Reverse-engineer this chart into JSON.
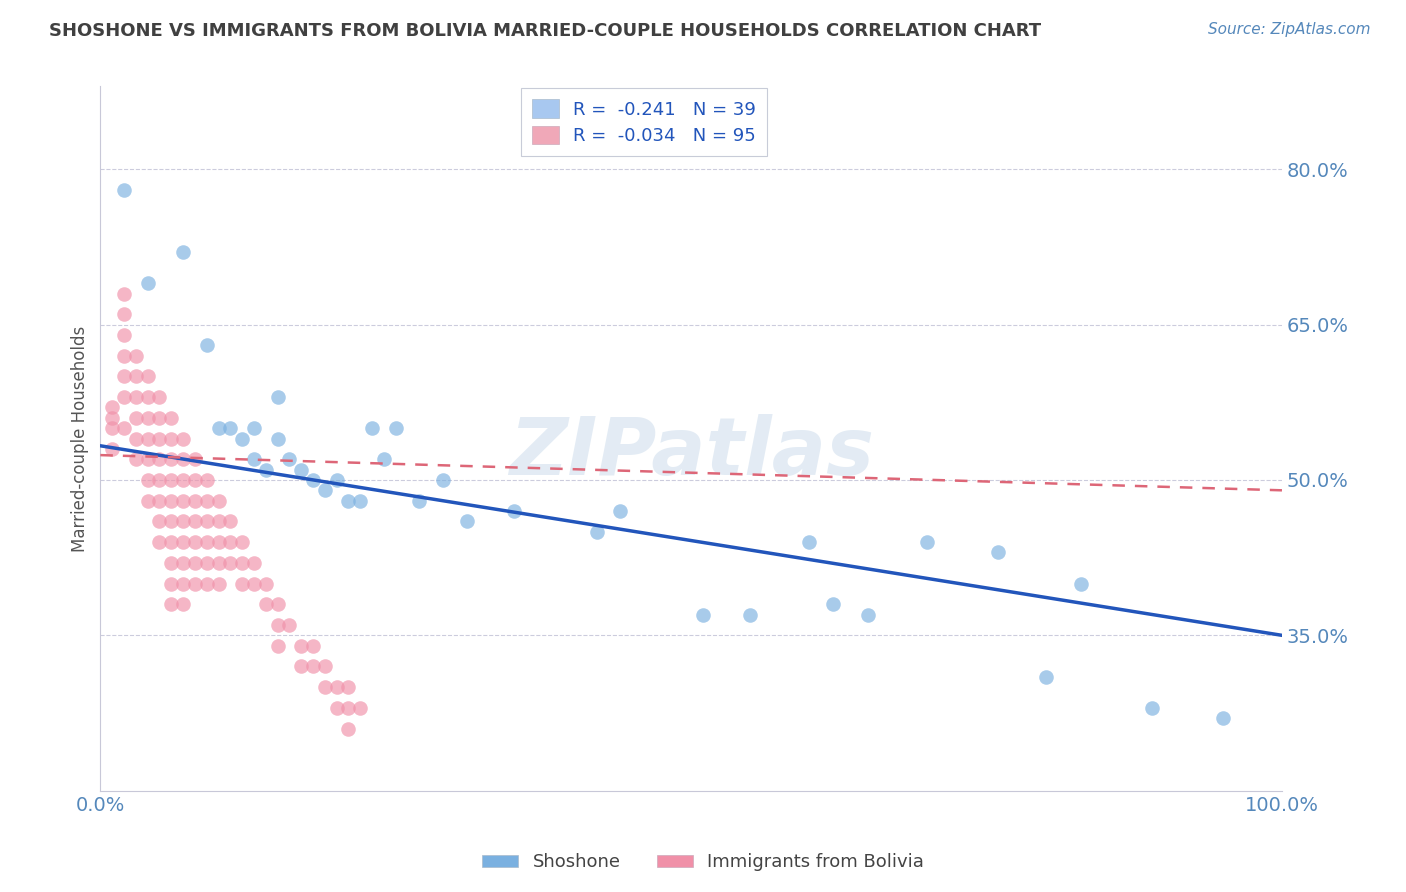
{
  "title": "SHOSHONE VS IMMIGRANTS FROM BOLIVIA MARRIED-COUPLE HOUSEHOLDS CORRELATION CHART",
  "source_text": "Source: ZipAtlas.com",
  "ylabel": "Married-couple Households",
  "watermark": "ZIPatlas",
  "xlim": [
    0.0,
    1.0
  ],
  "ylim": [
    0.2,
    0.88
  ],
  "yticks": [
    0.35,
    0.5,
    0.65,
    0.8
  ],
  "ytick_labels": [
    "35.0%",
    "50.0%",
    "65.0%",
    "80.0%"
  ],
  "legend_entries": [
    {
      "label": "R =  -0.241   N = 39",
      "color": "#a8c8f0"
    },
    {
      "label": "R =  -0.034   N = 95",
      "color": "#f0a8b8"
    }
  ],
  "shoshone_color": "#7ab0e0",
  "bolivia_color": "#f090a8",
  "shoshone_line_color": "#2255bb",
  "bolivia_line_color": "#dd6677",
  "title_color": "#404040",
  "axis_color": "#5588bb",
  "grid_color": "#ccccdd",
  "shoshone_x": [
    0.02,
    0.04,
    0.07,
    0.09,
    0.1,
    0.11,
    0.12,
    0.13,
    0.13,
    0.14,
    0.15,
    0.15,
    0.16,
    0.17,
    0.18,
    0.19,
    0.2,
    0.21,
    0.22,
    0.23,
    0.24,
    0.25,
    0.27,
    0.29,
    0.31,
    0.35,
    0.42,
    0.44,
    0.51,
    0.55,
    0.6,
    0.62,
    0.65,
    0.7,
    0.76,
    0.8,
    0.83,
    0.89,
    0.95
  ],
  "shoshone_y": [
    0.78,
    0.69,
    0.72,
    0.63,
    0.55,
    0.55,
    0.54,
    0.55,
    0.52,
    0.51,
    0.58,
    0.54,
    0.52,
    0.51,
    0.5,
    0.49,
    0.5,
    0.48,
    0.48,
    0.55,
    0.52,
    0.55,
    0.48,
    0.5,
    0.46,
    0.47,
    0.45,
    0.47,
    0.37,
    0.37,
    0.44,
    0.38,
    0.37,
    0.44,
    0.43,
    0.31,
    0.4,
    0.28,
    0.27
  ],
  "bolivia_x": [
    0.01,
    0.01,
    0.01,
    0.01,
    0.02,
    0.02,
    0.02,
    0.02,
    0.02,
    0.02,
    0.02,
    0.03,
    0.03,
    0.03,
    0.03,
    0.03,
    0.03,
    0.04,
    0.04,
    0.04,
    0.04,
    0.04,
    0.04,
    0.04,
    0.05,
    0.05,
    0.05,
    0.05,
    0.05,
    0.05,
    0.05,
    0.05,
    0.06,
    0.06,
    0.06,
    0.06,
    0.06,
    0.06,
    0.06,
    0.06,
    0.06,
    0.06,
    0.07,
    0.07,
    0.07,
    0.07,
    0.07,
    0.07,
    0.07,
    0.07,
    0.07,
    0.08,
    0.08,
    0.08,
    0.08,
    0.08,
    0.08,
    0.08,
    0.09,
    0.09,
    0.09,
    0.09,
    0.09,
    0.09,
    0.1,
    0.1,
    0.1,
    0.1,
    0.1,
    0.11,
    0.11,
    0.11,
    0.12,
    0.12,
    0.12,
    0.13,
    0.13,
    0.14,
    0.14,
    0.15,
    0.15,
    0.15,
    0.16,
    0.17,
    0.17,
    0.18,
    0.18,
    0.19,
    0.19,
    0.2,
    0.2,
    0.21,
    0.21,
    0.21,
    0.22
  ],
  "bolivia_y": [
    0.57,
    0.56,
    0.55,
    0.53,
    0.68,
    0.66,
    0.64,
    0.62,
    0.6,
    0.58,
    0.55,
    0.62,
    0.6,
    0.58,
    0.56,
    0.54,
    0.52,
    0.6,
    0.58,
    0.56,
    0.54,
    0.52,
    0.5,
    0.48,
    0.58,
    0.56,
    0.54,
    0.52,
    0.5,
    0.48,
    0.46,
    0.44,
    0.56,
    0.54,
    0.52,
    0.5,
    0.48,
    0.46,
    0.44,
    0.42,
    0.4,
    0.38,
    0.54,
    0.52,
    0.5,
    0.48,
    0.46,
    0.44,
    0.42,
    0.4,
    0.38,
    0.52,
    0.5,
    0.48,
    0.46,
    0.44,
    0.42,
    0.4,
    0.5,
    0.48,
    0.46,
    0.44,
    0.42,
    0.4,
    0.48,
    0.46,
    0.44,
    0.42,
    0.4,
    0.46,
    0.44,
    0.42,
    0.44,
    0.42,
    0.4,
    0.42,
    0.4,
    0.4,
    0.38,
    0.38,
    0.36,
    0.34,
    0.36,
    0.34,
    0.32,
    0.34,
    0.32,
    0.32,
    0.3,
    0.3,
    0.28,
    0.3,
    0.28,
    0.26,
    0.28
  ],
  "shoshone_trend": [
    0.533,
    0.35
  ],
  "bolivia_trend": [
    0.524,
    0.49
  ]
}
